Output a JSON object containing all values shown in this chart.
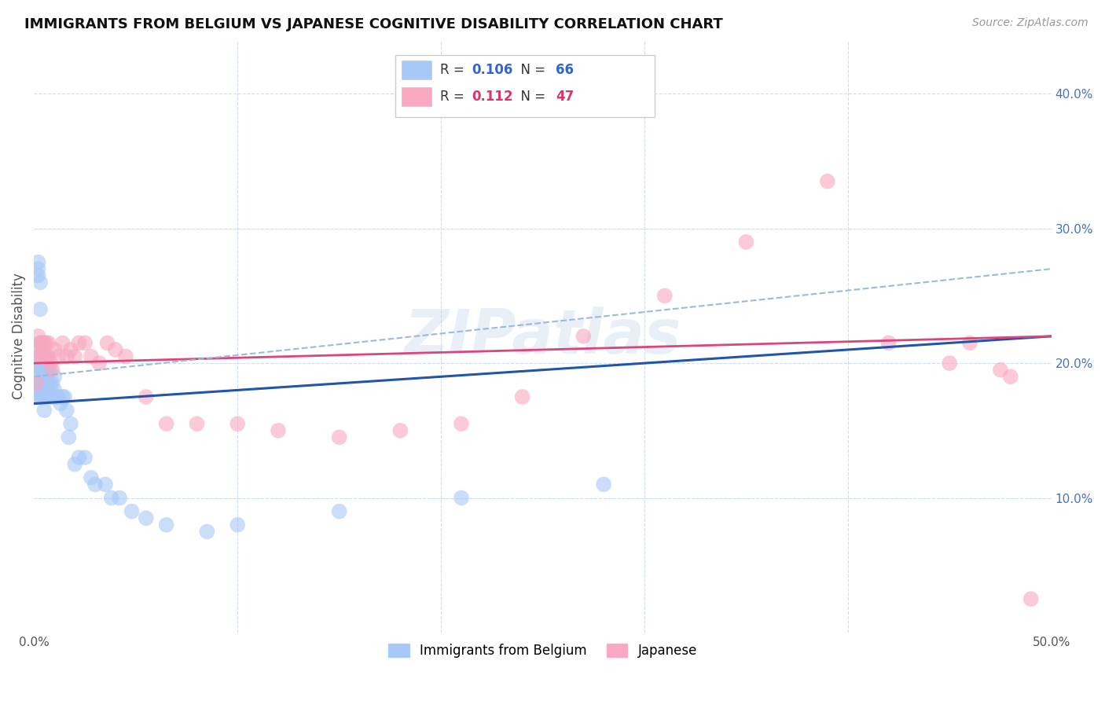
{
  "title": "IMMIGRANTS FROM BELGIUM VS JAPANESE COGNITIVE DISABILITY CORRELATION CHART",
  "source": "Source: ZipAtlas.com",
  "ylabel": "Cognitive Disability",
  "watermark": "ZIPatlas",
  "xlim": [
    0.0,
    0.5
  ],
  "ylim": [
    0.0,
    0.44
  ],
  "blue_color": "#a8c8f8",
  "pink_color": "#f8a8c0",
  "blue_line_color": "#2255aa",
  "pink_line_color": "#dd4477",
  "dashed_line_color": "#99bbdd",
  "background_color": "#ffffff",
  "grid_color": "#ccddee",
  "blue_scatter_x": [
    0.001,
    0.001,
    0.001,
    0.001,
    0.002,
    0.002,
    0.002,
    0.002,
    0.002,
    0.002,
    0.002,
    0.003,
    0.003,
    0.003,
    0.003,
    0.003,
    0.003,
    0.003,
    0.004,
    0.004,
    0.004,
    0.004,
    0.004,
    0.005,
    0.005,
    0.005,
    0.005,
    0.005,
    0.006,
    0.006,
    0.006,
    0.007,
    0.007,
    0.007,
    0.007,
    0.008,
    0.008,
    0.008,
    0.009,
    0.009,
    0.01,
    0.01,
    0.011,
    0.012,
    0.013,
    0.014,
    0.015,
    0.016,
    0.017,
    0.018,
    0.02,
    0.022,
    0.025,
    0.028,
    0.03,
    0.035,
    0.038,
    0.042,
    0.048,
    0.055,
    0.065,
    0.085,
    0.1,
    0.15,
    0.21,
    0.28
  ],
  "blue_scatter_y": [
    0.195,
    0.205,
    0.185,
    0.175,
    0.27,
    0.275,
    0.265,
    0.195,
    0.185,
    0.2,
    0.18,
    0.26,
    0.24,
    0.215,
    0.2,
    0.185,
    0.195,
    0.175,
    0.215,
    0.205,
    0.195,
    0.185,
    0.175,
    0.2,
    0.195,
    0.185,
    0.175,
    0.165,
    0.195,
    0.185,
    0.175,
    0.2,
    0.195,
    0.185,
    0.175,
    0.195,
    0.185,
    0.175,
    0.175,
    0.185,
    0.19,
    0.18,
    0.175,
    0.175,
    0.17,
    0.175,
    0.175,
    0.165,
    0.145,
    0.155,
    0.125,
    0.13,
    0.13,
    0.115,
    0.11,
    0.11,
    0.1,
    0.1,
    0.09,
    0.085,
    0.08,
    0.075,
    0.08,
    0.09,
    0.1,
    0.11
  ],
  "pink_scatter_x": [
    0.001,
    0.002,
    0.002,
    0.003,
    0.003,
    0.004,
    0.004,
    0.005,
    0.005,
    0.006,
    0.006,
    0.007,
    0.007,
    0.008,
    0.009,
    0.01,
    0.012,
    0.014,
    0.016,
    0.018,
    0.02,
    0.022,
    0.025,
    0.028,
    0.032,
    0.036,
    0.04,
    0.045,
    0.055,
    0.065,
    0.08,
    0.1,
    0.12,
    0.15,
    0.18,
    0.21,
    0.24,
    0.27,
    0.31,
    0.35,
    0.39,
    0.42,
    0.45,
    0.46,
    0.475,
    0.48,
    0.49
  ],
  "pink_scatter_y": [
    0.185,
    0.22,
    0.21,
    0.215,
    0.205,
    0.215,
    0.205,
    0.215,
    0.205,
    0.215,
    0.205,
    0.215,
    0.205,
    0.2,
    0.195,
    0.21,
    0.205,
    0.215,
    0.205,
    0.21,
    0.205,
    0.215,
    0.215,
    0.205,
    0.2,
    0.215,
    0.21,
    0.205,
    0.175,
    0.155,
    0.155,
    0.155,
    0.15,
    0.145,
    0.15,
    0.155,
    0.175,
    0.22,
    0.25,
    0.29,
    0.335,
    0.215,
    0.2,
    0.215,
    0.195,
    0.19,
    0.025
  ],
  "blue_trend_x": [
    0.0,
    0.5
  ],
  "blue_trend_y": [
    0.17,
    0.22
  ],
  "pink_trend_x": [
    0.0,
    0.5
  ],
  "pink_trend_y": [
    0.2,
    0.22
  ],
  "dashed_trend_x": [
    0.0,
    0.5
  ],
  "dashed_trend_y": [
    0.19,
    0.27
  ]
}
